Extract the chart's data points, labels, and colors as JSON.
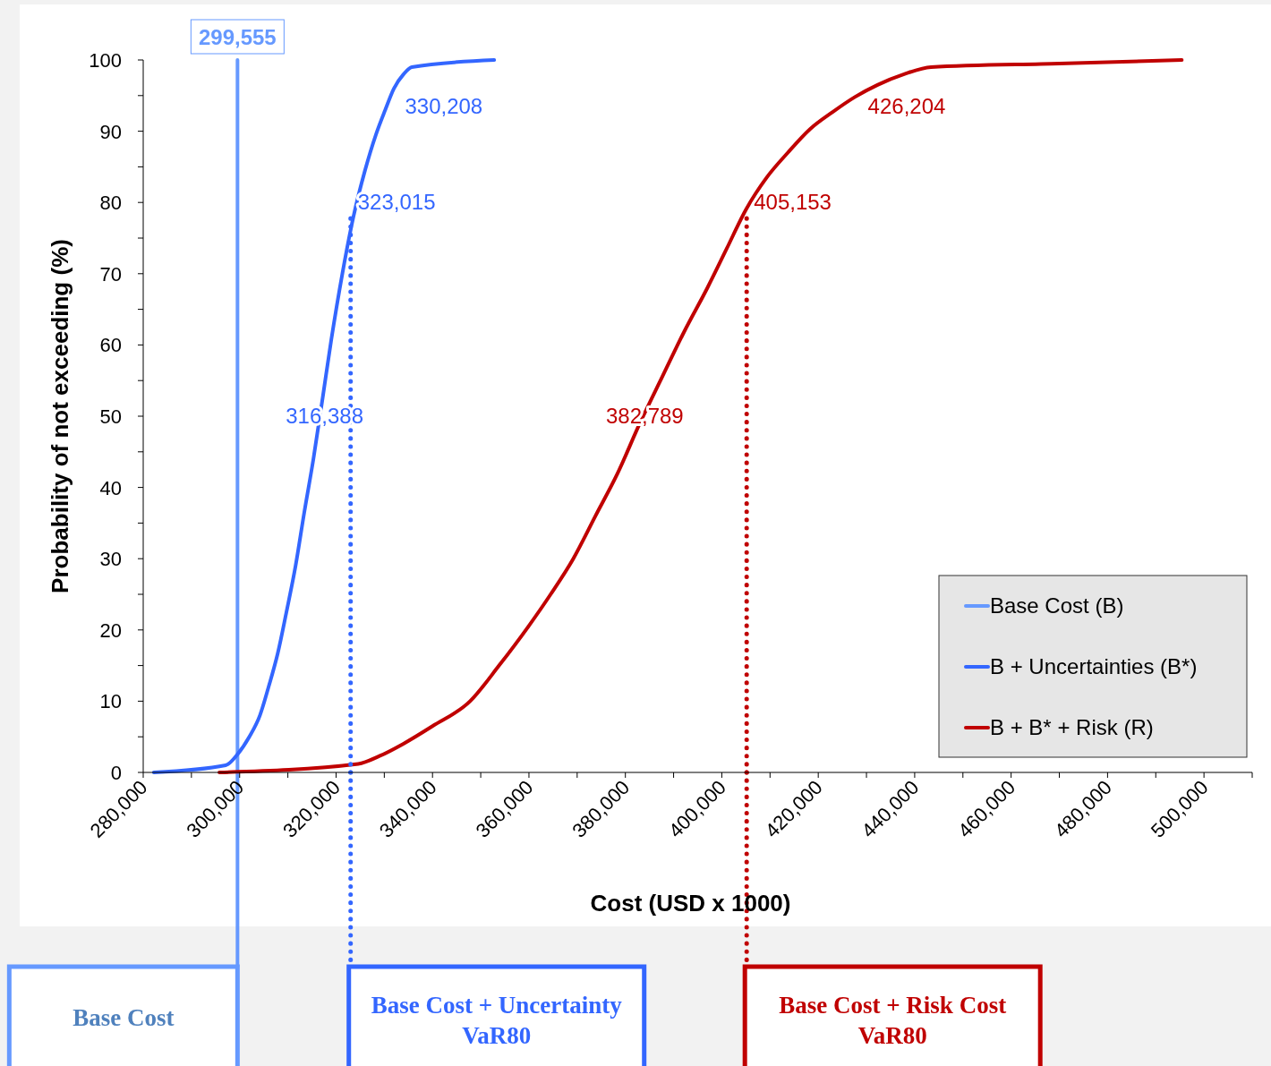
{
  "chart_data": {
    "type": "line",
    "xlabel": "Cost (USD x 1000)",
    "ylabel": "Probability of not exceeding (%)",
    "xlim": [
      280000,
      510000
    ],
    "xticks": [
      {
        "value": 280000,
        "label": "280,000"
      },
      {
        "value": 290000,
        "label": null
      },
      {
        "value": 300000,
        "label": "300,000"
      },
      {
        "value": 310000,
        "label": null
      },
      {
        "value": 320000,
        "label": "320,000"
      },
      {
        "value": 330000,
        "label": null
      },
      {
        "value": 340000,
        "label": "340,000"
      },
      {
        "value": 350000,
        "label": null
      },
      {
        "value": 360000,
        "label": "360,000"
      },
      {
        "value": 370000,
        "label": null
      },
      {
        "value": 380000,
        "label": "380,000"
      },
      {
        "value": 390000,
        "label": null
      },
      {
        "value": 400000,
        "label": "400,000"
      },
      {
        "value": 410000,
        "label": null
      },
      {
        "value": 420000,
        "label": "420,000"
      },
      {
        "value": 430000,
        "label": null
      },
      {
        "value": 440000,
        "label": "440,000"
      },
      {
        "value": 450000,
        "label": null
      },
      {
        "value": 460000,
        "label": "460,000"
      },
      {
        "value": 470000,
        "label": null
      },
      {
        "value": 480000,
        "label": "480,000"
      },
      {
        "value": 490000,
        "label": null
      },
      {
        "value": 500000,
        "label": "500,000"
      },
      {
        "value": 510000,
        "label": null
      }
    ],
    "ylim": [
      0,
      100
    ],
    "yticks": [
      0,
      {
        "value": 5,
        "label": null
      },
      10,
      {
        "value": 15,
        "label": null
      },
      20,
      {
        "value": 25,
        "label": null
      },
      30,
      {
        "value": 35,
        "label": null
      },
      40,
      {
        "value": 45,
        "label": null
      },
      50,
      {
        "value": 55,
        "label": null
      },
      60,
      {
        "value": 65,
        "label": null
      },
      70,
      {
        "value": 75,
        "label": null
      },
      80,
      {
        "value": 85,
        "label": null
      },
      90,
      {
        "value": 95,
        "label": null
      },
      100
    ],
    "grid": false,
    "legend": "bottom right",
    "series": [
      {
        "name": "Base Cost (B)",
        "color": "#6699ff",
        "line_style": "solid",
        "x": [
          299555,
          299555
        ],
        "values": [
          0,
          100
        ]
      },
      {
        "name": "B + Uncertainties (B*)",
        "color": "#3366ff",
        "line_style": "solid",
        "x": [
          282200,
          297100,
          299500,
          302000,
          304200,
          306000,
          307900,
          309700,
          311600,
          313400,
          315300,
          317200,
          319000,
          321300,
          323600,
          326000,
          328300,
          330200,
          332000,
          334000,
          335700,
          352800
        ],
        "values": [
          0,
          1,
          2.5,
          5,
          8,
          12,
          16.7,
          22.5,
          29,
          36.5,
          44,
          52.5,
          60.7,
          70,
          78,
          84.5,
          89.6,
          93,
          96,
          98,
          99,
          100
        ]
      },
      {
        "name": "B + B* + Risk (R)",
        "color": "#c00000",
        "line_style": "solid",
        "x": [
          295800,
          324600,
          329000,
          333900,
          340000,
          347800,
          353800,
          359900,
          364500,
          369200,
          373800,
          378400,
          383000,
          387700,
          392300,
          397000,
          401000,
          405000,
          409300,
          413700,
          418300,
          423000,
          427600,
          432300,
          437800,
          443400,
          470000,
          495400
        ],
        "values": [
          0,
          1.2,
          2.3,
          4,
          6.5,
          10,
          15,
          20.5,
          25,
          30,
          36,
          42,
          49,
          55.6,
          62,
          68,
          73.5,
          79,
          83.5,
          87,
          90.3,
          92.7,
          94.8,
          96.5,
          98,
          99,
          99.5,
          100
        ]
      },
      {
        "color": "#3366ff",
        "line_style": "dotted",
        "x": [
          323015,
          323015
        ],
        "values": [
          0,
          78.5
        ]
      },
      {
        "color": "#c00000",
        "line_style": "dotted",
        "x": [
          405153,
          405153
        ],
        "values": [
          0,
          78.5
        ]
      }
    ],
    "annotations": [
      {
        "text": "299,555",
        "x": 299555,
        "y": 100
      },
      {
        "text": "330,208",
        "x": 330208,
        "y": 95
      },
      {
        "text": "323,015",
        "x": 323015,
        "y": 80
      },
      {
        "text": "316,388",
        "x": 316388,
        "y": 50
      },
      {
        "text": "382,789",
        "x": 382789,
        "y": 50
      },
      {
        "text": "405,153",
        "x": 405153,
        "y": 80
      },
      {
        "text": "426,204",
        "x": 426204,
        "y": 95
      },
      "Base Cost",
      "Base Cost + Uncertainty\nVaR80",
      "Base Cost + Risk Cost\nVaR80"
    ]
  }
}
